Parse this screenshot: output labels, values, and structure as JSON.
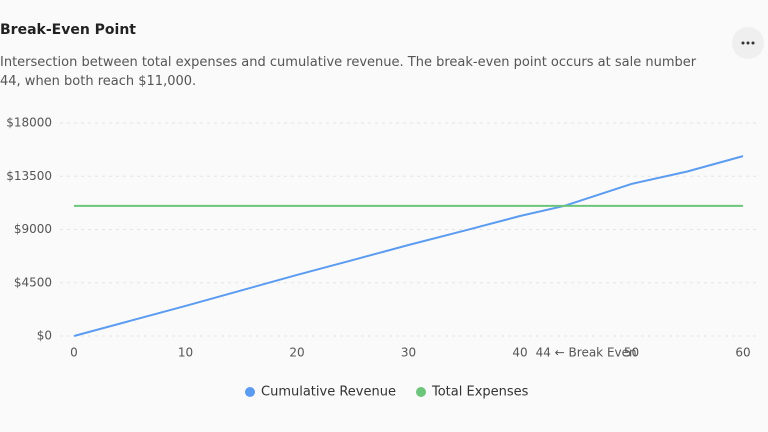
{
  "chart_data": {
    "type": "line",
    "title": "Break-Even Point",
    "subtitle": "Intersection between total expenses and cumulative revenue. The break-even point occurs at sale number 44, when both reach $11,000.",
    "x": [
      0,
      5,
      10,
      15,
      20,
      25,
      30,
      35,
      40,
      44,
      50,
      55,
      60
    ],
    "series": [
      {
        "name": "Cumulative Revenue",
        "color": "#5b9cf0",
        "values": [
          0,
          1270,
          2540,
          3850,
          5160,
          6420,
          7690,
          8900,
          10140,
          11000,
          12850,
          13900,
          15200
        ]
      },
      {
        "name": "Total Expenses",
        "color": "#6cc57a",
        "values": [
          11000,
          11000,
          11000,
          11000,
          11000,
          11000,
          11000,
          11000,
          11000,
          11000,
          11000,
          11000,
          11000
        ]
      }
    ],
    "xlim": [
      0,
      60
    ],
    "xticks": [
      0,
      10,
      20,
      30,
      40,
      {
        "value": 44,
        "label": "44 ← Break Even"
      },
      50,
      60
    ],
    "ylim": [
      0,
      18000
    ],
    "yticks": [
      {
        "value": 0,
        "label": "$0"
      },
      {
        "value": 4500,
        "label": "$4500"
      },
      {
        "value": 9000,
        "label": "$9000"
      },
      {
        "value": 13500,
        "label": "$13500"
      },
      {
        "value": 18000,
        "label": "$18000"
      }
    ],
    "grid": true
  }
}
